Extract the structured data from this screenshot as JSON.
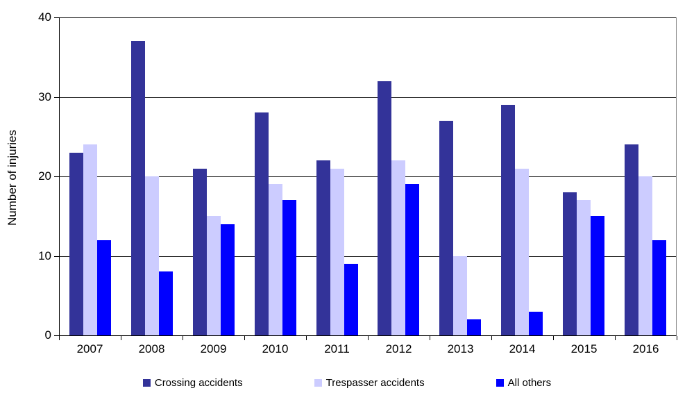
{
  "chart_data": {
    "type": "bar",
    "title": "",
    "xlabel": "",
    "ylabel": "Number of injuries",
    "categories": [
      "2007",
      "2008",
      "2009",
      "2010",
      "2011",
      "2012",
      "2013",
      "2014",
      "2015",
      "2016"
    ],
    "series": [
      {
        "name": "Crossing accidents",
        "color": "#333399",
        "values": [
          23,
          37,
          21,
          28,
          22,
          32,
          27,
          29,
          18,
          24
        ]
      },
      {
        "name": "Trespasser accidents",
        "color": "#ccccff",
        "values": [
          24,
          20,
          15,
          19,
          21,
          22,
          10,
          21,
          17,
          20
        ]
      },
      {
        "name": "All others",
        "color": "#0000ff",
        "values": [
          12,
          8,
          14,
          17,
          9,
          19,
          2,
          3,
          15,
          12
        ]
      }
    ],
    "ylim": [
      0,
      40
    ],
    "yticks": [
      0,
      10,
      20,
      30,
      40
    ],
    "grid": true,
    "legend_position": "bottom",
    "axis_color": "#000000",
    "plot_border_color": "#848484"
  }
}
